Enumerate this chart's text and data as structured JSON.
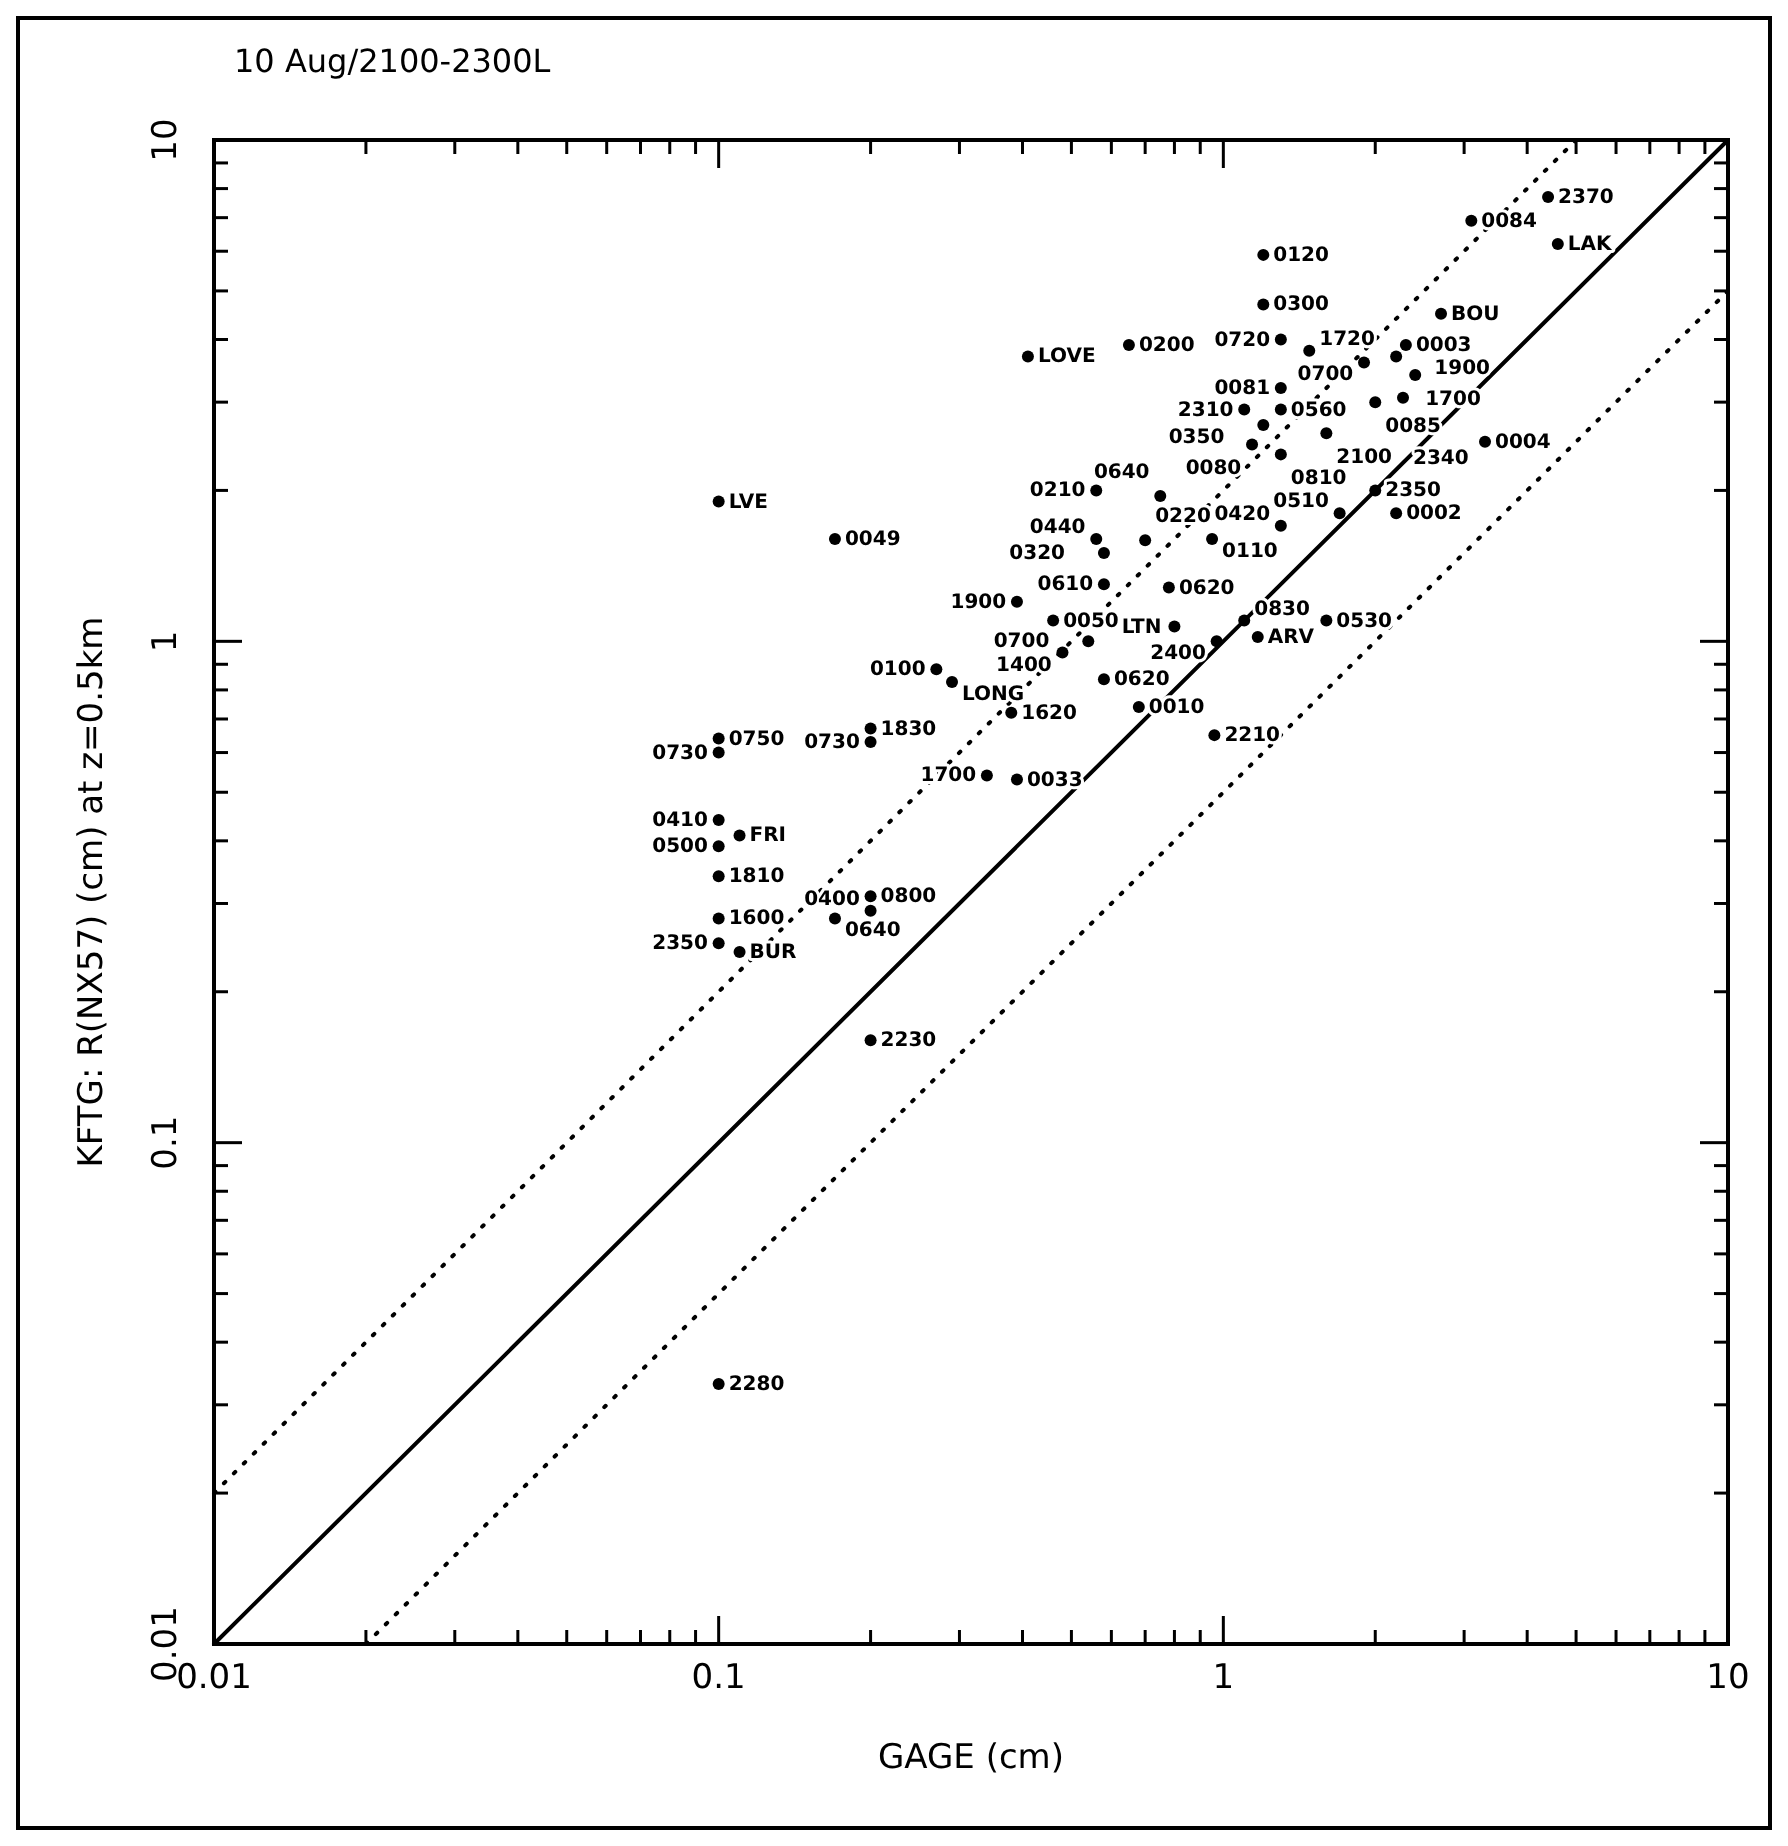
{
  "chart_data": {
    "type": "scatter",
    "title": "10 Aug/2100-2300L",
    "xlabel": "GAGE (cm)",
    "ylabel": "KFTG: R(NX57) (cm) at z=0.5km",
    "log": "xy",
    "grid": false,
    "marker": "circle",
    "xlim": [
      0.01,
      10
    ],
    "ylim": [
      0.01,
      10
    ],
    "xticks": [
      0.01,
      {
        "value": 0.02,
        "label": null
      },
      {
        "value": 0.03,
        "label": null
      },
      {
        "value": 0.04,
        "label": null
      },
      {
        "value": 0.05,
        "label": null
      },
      {
        "value": 0.06,
        "label": null
      },
      {
        "value": 0.07,
        "label": null
      },
      {
        "value": 0.08,
        "label": null
      },
      {
        "value": 0.09,
        "label": null
      },
      0.1,
      {
        "value": 0.2,
        "label": null
      },
      {
        "value": 0.3,
        "label": null
      },
      {
        "value": 0.4,
        "label": null
      },
      {
        "value": 0.5,
        "label": null
      },
      {
        "value": 0.6,
        "label": null
      },
      {
        "value": 0.7,
        "label": null
      },
      {
        "value": 0.8,
        "label": null
      },
      {
        "value": 0.9,
        "label": null
      },
      1,
      {
        "value": 2,
        "label": null
      },
      {
        "value": 3,
        "label": null
      },
      {
        "value": 4,
        "label": null
      },
      {
        "value": 5,
        "label": null
      },
      {
        "value": 6,
        "label": null
      },
      {
        "value": 7,
        "label": null
      },
      {
        "value": 8,
        "label": null
      },
      {
        "value": 9,
        "label": null
      },
      10
    ],
    "yticks": [
      0.01,
      {
        "value": 0.02,
        "label": null
      },
      {
        "value": 0.03,
        "label": null
      },
      {
        "value": 0.04,
        "label": null
      },
      {
        "value": 0.05,
        "label": null
      },
      {
        "value": 0.06,
        "label": null
      },
      {
        "value": 0.07,
        "label": null
      },
      {
        "value": 0.08,
        "label": null
      },
      {
        "value": 0.09,
        "label": null
      },
      0.1,
      {
        "value": 0.2,
        "label": null
      },
      {
        "value": 0.3,
        "label": null
      },
      {
        "value": 0.4,
        "label": null
      },
      {
        "value": 0.5,
        "label": null
      },
      {
        "value": 0.6,
        "label": null
      },
      {
        "value": 0.7,
        "label": null
      },
      {
        "value": 0.8,
        "label": null
      },
      {
        "value": 0.9,
        "label": null
      },
      1,
      {
        "value": 2,
        "label": null
      },
      {
        "value": 3,
        "label": null
      },
      {
        "value": 4,
        "label": null
      },
      {
        "value": 5,
        "label": null
      },
      {
        "value": 6,
        "label": null
      },
      {
        "value": 7,
        "label": null
      },
      {
        "value": 8,
        "label": null
      },
      {
        "value": 9,
        "label": null
      },
      10
    ],
    "series": [
      {
        "color": "#000000",
        "x": [
          1.2,
          4.4,
          3.1,
          4.6,
          1.2,
          2.7,
          1.3,
          1.48,
          2.3,
          1.9,
          2.2,
          2.4,
          1.3,
          1.1,
          1.3,
          2.0,
          2.27,
          1.2,
          1.6,
          1.14,
          1.3,
          3.3,
          2.0,
          1.7,
          2.2,
          1.3,
          0.95,
          1.6,
          1.1,
          0.97,
          1.17,
          0.8,
          0.54,
          0.78,
          0.58,
          0.58,
          0.56,
          0.7,
          0.56,
          0.75,
          0.65,
          0.41,
          0.1,
          0.17,
          0.39,
          0.46,
          0.48,
          0.27,
          0.29,
          0.58,
          0.38,
          0.68,
          0.96,
          0.2,
          0.2,
          0.1,
          0.1,
          0.34,
          0.39,
          0.1,
          0.11,
          0.1,
          0.1,
          0.1,
          0.1,
          0.11,
          0.2,
          0.2,
          0.17,
          0.2,
          0.1
        ],
        "values": [
          5.9,
          7.7,
          6.9,
          6.2,
          4.7,
          4.5,
          4.0,
          3.8,
          3.9,
          3.6,
          3.7,
          3.4,
          3.2,
          2.9,
          2.9,
          3.0,
          3.06,
          2.7,
          2.6,
          2.47,
          2.36,
          2.5,
          2.0,
          1.8,
          1.8,
          1.7,
          1.6,
          1.1,
          1.1,
          1.0,
          1.02,
          1.07,
          1.0,
          1.28,
          1.3,
          1.5,
          1.6,
          1.59,
          2.0,
          1.95,
          3.9,
          3.7,
          1.9,
          1.6,
          1.2,
          1.1,
          0.95,
          0.88,
          0.83,
          0.84,
          0.72,
          0.74,
          0.65,
          0.67,
          0.63,
          0.64,
          0.6,
          0.54,
          0.53,
          0.44,
          0.41,
          0.39,
          0.34,
          0.28,
          0.25,
          0.24,
          0.31,
          0.29,
          0.28,
          0.16,
          0.033
        ]
      },
      {
        "type": "line",
        "color": "#000000",
        "line_style": "solid",
        "marker": "none",
        "x": [
          0.01,
          10
        ],
        "values": [
          0.01,
          10
        ]
      },
      {
        "type": "line",
        "color": "#000000",
        "line_style": "dotted",
        "marker": "none",
        "x": [
          0.01,
          5
        ],
        "values": [
          0.02,
          10
        ]
      },
      {
        "type": "line",
        "color": "#000000",
        "line_style": "dotted",
        "marker": "none",
        "x": [
          0.02,
          10
        ],
        "values": [
          0.01,
          5
        ]
      }
    ],
    "annotations": [
      {
        "text": "0120",
        "x": 1.2,
        "y": 5.9
      },
      {
        "text": "2370",
        "x": 4.4,
        "y": 7.7
      },
      {
        "text": "0084",
        "x": 3.1,
        "y": 6.9
      },
      {
        "text": "LAK",
        "x": 4.6,
        "y": 6.2
      },
      {
        "text": "0300",
        "x": 1.2,
        "y": 4.7
      },
      {
        "text": "BOU",
        "x": 2.7,
        "y": 4.5
      },
      {
        "text": "0720",
        "x": 1.3,
        "y": 4.0
      },
      {
        "text": "1720",
        "x": 1.48,
        "y": 3.8
      },
      {
        "text": "0003",
        "x": 2.3,
        "y": 3.9
      },
      {
        "text": "0700",
        "x": 1.9,
        "y": 3.6
      },
      {
        "text": "1900",
        "x": 2.2,
        "y": 3.7
      },
      {
        "text": "1700",
        "x": 2.4,
        "y": 3.4
      },
      {
        "text": "0081",
        "x": 1.3,
        "y": 3.2
      },
      {
        "text": "2310",
        "x": 1.1,
        "y": 2.9
      },
      {
        "text": "0560",
        "x": 1.3,
        "y": 2.9
      },
      {
        "text": "0085",
        "x": 2.0,
        "y": 3.0
      },
      {
        "text": "2340",
        "x": 2.27,
        "y": 3.06
      },
      {
        "text": "0350",
        "x": 1.2,
        "y": 2.7
      },
      {
        "text": "2100",
        "x": 1.6,
        "y": 2.6
      },
      {
        "text": "0080",
        "x": 1.14,
        "y": 2.47
      },
      {
        "text": "0810",
        "x": 1.3,
        "y": 2.36
      },
      {
        "text": "0004",
        "x": 3.3,
        "y": 2.5
      },
      {
        "text": "2350",
        "x": 2.0,
        "y": 2.0
      },
      {
        "text": "0510",
        "x": 1.7,
        "y": 1.8
      },
      {
        "text": "0002",
        "x": 2.2,
        "y": 1.8
      },
      {
        "text": "0420",
        "x": 1.3,
        "y": 1.7
      },
      {
        "text": "0110",
        "x": 0.95,
        "y": 1.6
      },
      {
        "text": "0530",
        "x": 1.6,
        "y": 1.1
      },
      {
        "text": "0830",
        "x": 1.1,
        "y": 1.1
      },
      {
        "text": "2400",
        "x": 0.97,
        "y": 1.0
      },
      {
        "text": "ARV",
        "x": 1.17,
        "y": 1.02
      },
      {
        "text": "LTN",
        "x": 0.8,
        "y": 1.07
      },
      {
        "text": "0700",
        "x": 0.54,
        "y": 1.0
      },
      {
        "text": "0620",
        "x": 0.78,
        "y": 1.28
      },
      {
        "text": "0610",
        "x": 0.58,
        "y": 1.3
      },
      {
        "text": "0320",
        "x": 0.58,
        "y": 1.5
      },
      {
        "text": "0440",
        "x": 0.56,
        "y": 1.6
      },
      {
        "text": "0220",
        "x": 0.7,
        "y": 1.59
      },
      {
        "text": "0210",
        "x": 0.56,
        "y": 2.0
      },
      {
        "text": "0640",
        "x": 0.75,
        "y": 1.95
      },
      {
        "text": "0200",
        "x": 0.65,
        "y": 3.9
      },
      {
        "text": "LOVE",
        "x": 0.41,
        "y": 3.7
      },
      {
        "text": "LVE",
        "x": 0.1,
        "y": 1.9
      },
      {
        "text": "0049",
        "x": 0.17,
        "y": 1.6
      },
      {
        "text": "1900",
        "x": 0.39,
        "y": 1.2
      },
      {
        "text": "0050",
        "x": 0.46,
        "y": 1.1
      },
      {
        "text": "1400",
        "x": 0.48,
        "y": 0.95
      },
      {
        "text": "0100",
        "x": 0.27,
        "y": 0.88
      },
      {
        "text": "LONG",
        "x": 0.29,
        "y": 0.83
      },
      {
        "text": "0620",
        "x": 0.58,
        "y": 0.84
      },
      {
        "text": "1620",
        "x": 0.38,
        "y": 0.72
      },
      {
        "text": "0010",
        "x": 0.68,
        "y": 0.74
      },
      {
        "text": "2210",
        "x": 0.96,
        "y": 0.65
      },
      {
        "text": "1830",
        "x": 0.2,
        "y": 0.67
      },
      {
        "text": "0730",
        "x": 0.2,
        "y": 0.63
      },
      {
        "text": "0750",
        "x": 0.1,
        "y": 0.64
      },
      {
        "text": "0730",
        "x": 0.1,
        "y": 0.6
      },
      {
        "text": "1700",
        "x": 0.34,
        "y": 0.54
      },
      {
        "text": "0033",
        "x": 0.39,
        "y": 0.53
      },
      {
        "text": "0410",
        "x": 0.1,
        "y": 0.44
      },
      {
        "text": "FRI",
        "x": 0.11,
        "y": 0.41
      },
      {
        "text": "0500",
        "x": 0.1,
        "y": 0.39
      },
      {
        "text": "1810",
        "x": 0.1,
        "y": 0.34
      },
      {
        "text": "1600",
        "x": 0.1,
        "y": 0.28
      },
      {
        "text": "2350",
        "x": 0.1,
        "y": 0.25
      },
      {
        "text": "BUR",
        "x": 0.11,
        "y": 0.24
      },
      {
        "text": "0800",
        "x": 0.2,
        "y": 0.31
      },
      {
        "text": "0400",
        "x": 0.2,
        "y": 0.29
      },
      {
        "text": "0640",
        "x": 0.17,
        "y": 0.28
      },
      {
        "text": "2230",
        "x": 0.2,
        "y": 0.16
      },
      {
        "text": "2280",
        "x": 0.1,
        "y": 0.033
      }
    ]
  }
}
